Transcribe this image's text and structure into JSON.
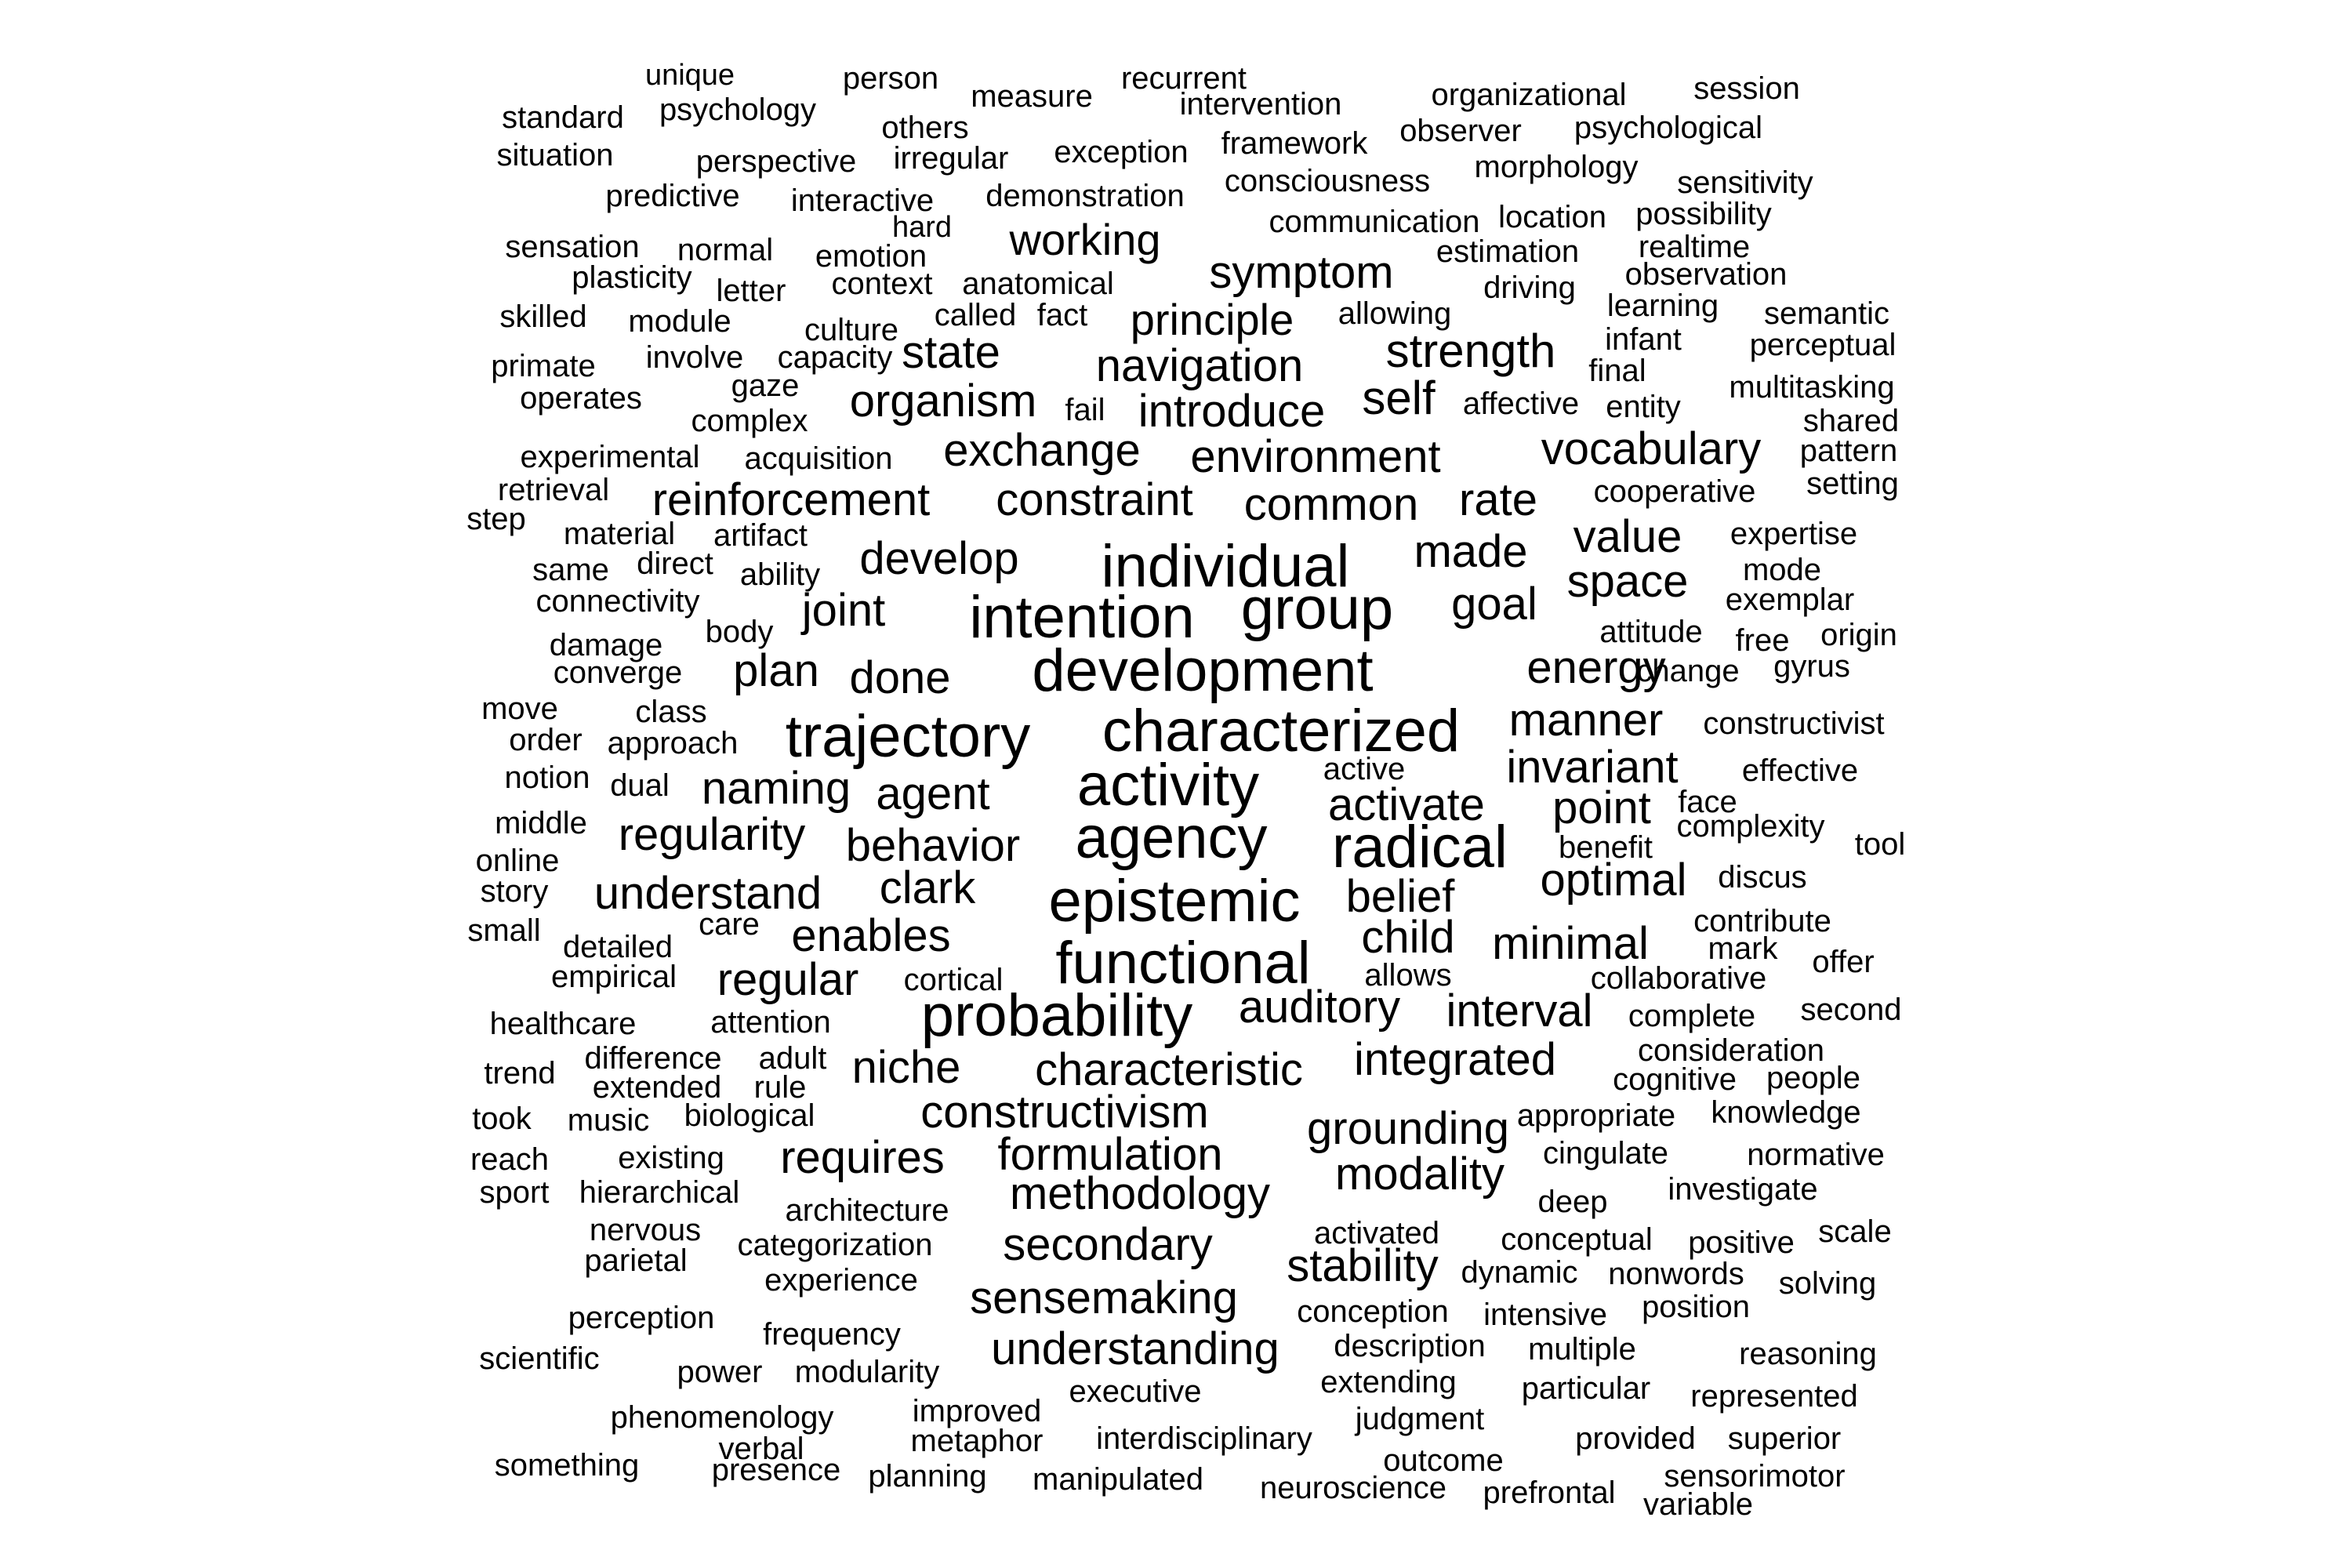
{
  "words": [
    "unique",
    "person",
    "recurrent",
    "measure",
    "intervention",
    "organizational",
    "session",
    "standard",
    "psychology",
    "others",
    "framework",
    "observer",
    "psychological",
    "situation",
    "perspective",
    "irregular",
    "exception",
    "morphology",
    "predictive",
    "interactive",
    "demonstration",
    "consciousness",
    "sensitivity",
    "hard",
    "communication",
    "location",
    "possibility",
    "sensation",
    "normal",
    "emotion",
    "working",
    "estimation",
    "realtime",
    "plasticity",
    "letter",
    "context",
    "anatomical",
    "symptom",
    "driving",
    "observation",
    "skilled",
    "module",
    "culture",
    "called",
    "fact",
    "principle",
    "allowing",
    "learning",
    "semantic",
    "primate",
    "involve",
    "capacity",
    "state",
    "navigation",
    "strength",
    "infant",
    "perceptual",
    "operates",
    "gaze",
    "complex",
    "organism",
    "fail",
    "introduce",
    "self",
    "affective",
    "final",
    "entity",
    "multitasking",
    "shared",
    "experimental",
    "acquisition",
    "exchange",
    "environment",
    "vocabulary",
    "pattern",
    "retrieval",
    "reinforcement",
    "constraint",
    "common",
    "rate",
    "cooperative",
    "setting",
    "step",
    "material",
    "artifact",
    "expertise",
    "same",
    "direct",
    "ability",
    "develop",
    "individual",
    "made",
    "value",
    "mode",
    "connectivity",
    "joint",
    "intention",
    "group",
    "space",
    "exemplar",
    "body",
    "goal",
    "attitude",
    "free",
    "origin",
    "damage",
    "converge",
    "plan",
    "done",
    "development",
    "energy",
    "change",
    "gyrus",
    "move",
    "class",
    "trajectory",
    "characterized",
    "manner",
    "constructivist",
    "order",
    "approach",
    "invariant",
    "active",
    "effective",
    "notion",
    "dual",
    "naming",
    "agent",
    "activity",
    "activate",
    "point",
    "face",
    "middle",
    "regularity",
    "behavior",
    "agency",
    "radical",
    "benefit",
    "complexity",
    "tool",
    "online",
    "understand",
    "clark",
    "optimal",
    "discus",
    "story",
    "epistemic",
    "belief",
    "contribute",
    "small",
    "care",
    "enables",
    "child",
    "minimal",
    "mark",
    "detailed",
    "functional",
    "offer",
    "empirical",
    "cortical",
    "allows",
    "collaborative",
    "regular",
    "auditory",
    "interval",
    "second",
    "healthcare",
    "attention",
    "probability",
    "complete",
    "difference",
    "adult",
    "consideration",
    "trend",
    "niche",
    "characteristic",
    "integrated",
    "cognitive",
    "people",
    "extended",
    "rule",
    "constructivism",
    "took",
    "music",
    "biological",
    "appropriate",
    "knowledge",
    "grounding",
    "reach",
    "existing",
    "requires",
    "formulation",
    "cingulate",
    "normative",
    "modality",
    "sport",
    "hierarchical",
    "methodology",
    "deep",
    "investigate",
    "architecture",
    "nervous",
    "activated",
    "scale",
    "categorization",
    "secondary",
    "conceptual",
    "positive",
    "parietal",
    "stability",
    "dynamic",
    "nonwords",
    "experience",
    "solving",
    "sensemaking",
    "perception",
    "conception",
    "intensive",
    "position",
    "frequency",
    "understanding",
    "description",
    "multiple",
    "reasoning",
    "scientific",
    "power",
    "modularity",
    "executive",
    "extending",
    "particular",
    "represented",
    "phenomenology",
    "improved",
    "judgment",
    "interdisciplinary",
    "verbal",
    "metaphor",
    "provided",
    "superior",
    "something",
    "presence",
    "planning",
    "outcome",
    "manipulated",
    "sensorimotor",
    "neuroscience",
    "prefrontal",
    "variable"
  ]
}
